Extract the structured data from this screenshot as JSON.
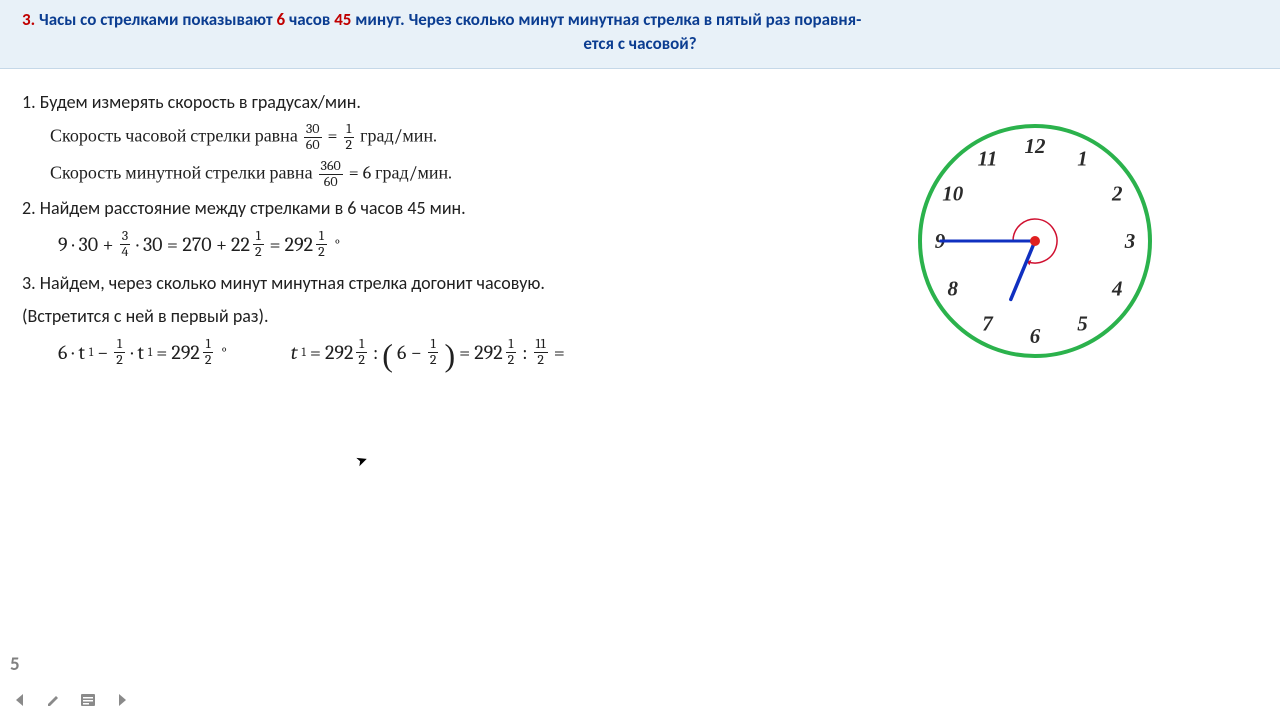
{
  "question": {
    "number": "3.",
    "text_before_h": "Часы со стрелками показывают ",
    "hours": "6",
    "text_mid": " часов ",
    "minutes": "45",
    "text_after_m": " минут. Через сколько минут минутная стрелка в пятый раз поравня-",
    "line2": "ется с часовой?"
  },
  "steps": {
    "s1": "1. Будем измерять скорость в градусах/мин.",
    "s1a_pre": "Скорость часовой стрелки равна ",
    "s1a_frac1_num": "30",
    "s1a_frac1_den": "60",
    "s1a_eq": " = ",
    "s1a_frac2_num": "1",
    "s1a_frac2_den": "2",
    "s1a_post": " град/мин.",
    "s1b_pre": "Скорость минутной стрелки равна ",
    "s1b_frac_num": "360",
    "s1b_frac_den": "60",
    "s1b_eq": " = 6 град/мин.",
    "s2": "2. Найдем расстояние между стрелками в 6 часов 45 мин.",
    "s3": "3. Найдем, через сколько минут минутная стрелка догонит  часовую.",
    "s3b": "(Встретится с ней в первый раз)."
  },
  "eq1": {
    "p1": "9 · 30 +",
    "f1n": "3",
    "f1d": "4",
    "p2": "· 30 = 270 + ",
    "m1w": "22",
    "m1n": "1",
    "m1d": "2",
    "p3": " = ",
    "m2w": "292",
    "m2n": "1",
    "m2d": "2",
    "deg": "°"
  },
  "eq2": {
    "p1": "6 · t",
    "sub1": "1",
    "p2": " − ",
    "f1n": "1",
    "f1d": "2",
    "p3": " · t",
    "sub2": "1",
    "p4": " = ",
    "m1w": "292",
    "m1n": "1",
    "m1d": "2",
    "deg": "°",
    "b2_p1": "t",
    "b2_sub": "1",
    "b2_p2": " = ",
    "b2_m1w": "292",
    "b2_m1n": "1",
    "b2_m1d": "2",
    "b2_p3": " : ",
    "b2_paren_inner_pre": "6 − ",
    "b2_pf_n": "1",
    "b2_pf_d": "2",
    "b2_p4": " = ",
    "b2_m2w": "292",
    "b2_m2n": "1",
    "b2_m2d": "2",
    "b2_p5": " : ",
    "b2_f3n": "11",
    "b2_f3d": "2",
    "b2_p6": " ="
  },
  "clock": {
    "border_color": "#2bb24c",
    "face_color": "#ffffff",
    "numeral_color": "#2b2b2b",
    "hand_color": "#1030c0",
    "arc_color": "#d01030",
    "radius": 115,
    "minute_angle_deg": 270,
    "hour_angle_deg": 202.5,
    "numerals": [
      "12",
      "1",
      "2",
      "3",
      "4",
      "5",
      "6",
      "7",
      "8",
      "9",
      "10",
      "11"
    ]
  },
  "page": {
    "number": "5"
  }
}
